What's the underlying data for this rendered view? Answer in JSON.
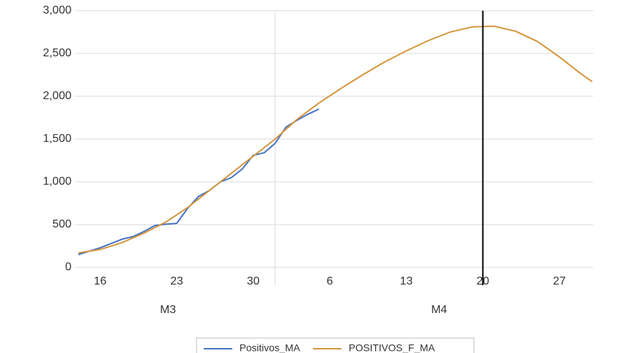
{
  "chart_data": {
    "type": "line",
    "xlim": [
      13.7,
      61.1
    ],
    "ylim": [
      0,
      3000
    ],
    "xticks": [
      16,
      23,
      30,
      {
        "value": 37,
        "label": "6"
      },
      {
        "value": 44,
        "label": "13"
      },
      {
        "value": 51,
        "label": "20"
      },
      {
        "value": 58,
        "label": "27"
      }
    ],
    "yticks": [
      0,
      500,
      {
        "value": 1000,
        "label": "1,000"
      },
      {
        "value": 1500,
        "label": "1,500"
      },
      {
        "value": 2000,
        "label": "2,000"
      },
      {
        "value": 2500,
        "label": "2,500"
      },
      {
        "value": 3000,
        "label": "3,000"
      }
    ],
    "month_labels": [
      {
        "value": 22.2,
        "label": "M3"
      },
      {
        "value": 47,
        "label": "M4"
      }
    ],
    "month_boundaries": [
      32
    ],
    "marker_line": {
      "value": 51,
      "color": "#000000"
    },
    "grid": true,
    "legend": "bottom",
    "series": [
      {
        "name": "Positivos_MA",
        "color": "#4472c4",
        "x": [
          14,
          15,
          16,
          17,
          18,
          19,
          20,
          21,
          22,
          23,
          24,
          25,
          26,
          27,
          28,
          29,
          30,
          31,
          32,
          33,
          34,
          35,
          36
        ],
        "values": [
          150,
          190,
          230,
          280,
          330,
          360,
          420,
          490,
          505,
          515,
          690,
          830,
          900,
          1000,
          1050,
          1150,
          1310,
          1340,
          1450,
          1640,
          1720,
          1790,
          1850
        ]
      },
      {
        "name": "POSITIVOS_F_MA",
        "color": "#d4953a",
        "x": [
          14,
          16,
          18,
          20,
          22,
          24,
          26,
          28,
          30,
          32,
          34,
          36,
          38,
          40,
          42,
          44,
          46,
          48,
          50,
          52,
          54,
          56,
          58,
          60,
          61
        ],
        "values": [
          170,
          210,
          290,
          400,
          530,
          700,
          900,
          1100,
          1300,
          1500,
          1730,
          1920,
          2090,
          2250,
          2400,
          2530,
          2650,
          2750,
          2810,
          2820,
          2760,
          2640,
          2460,
          2260,
          2170
        ]
      }
    ]
  }
}
